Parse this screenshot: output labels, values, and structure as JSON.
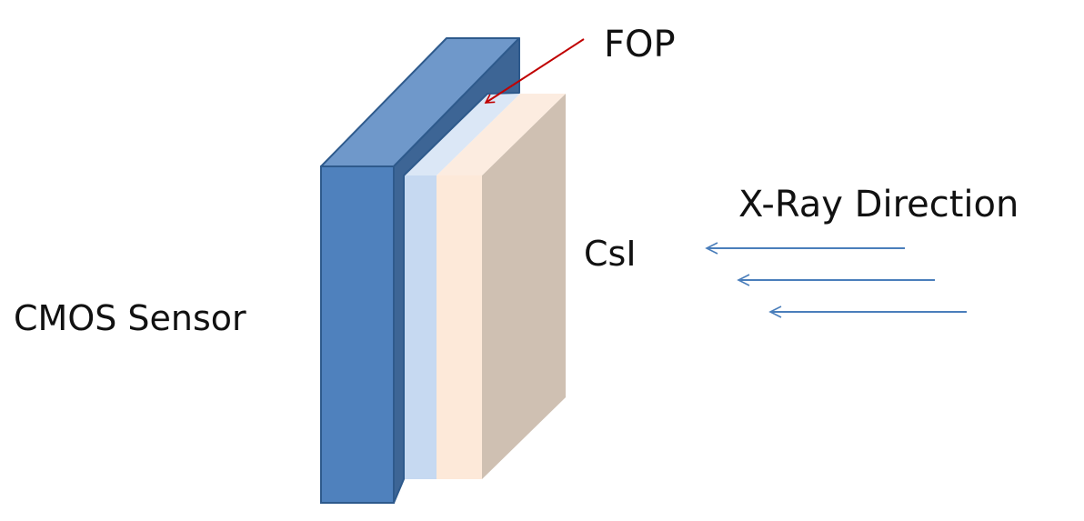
{
  "labels": {
    "fop": "FOP",
    "xray_direction": "X-Ray Direction",
    "csi": "CsI",
    "cmos_sensor": "CMOS Sensor"
  },
  "colors": {
    "cmos_front": "#4f81bd",
    "cmos_top": "#6f98ca",
    "cmos_side": "#3d6595",
    "fop_front": "#c6d9f1",
    "fop_top": "#dbe7f6",
    "csi_front": "#fde9d9",
    "csi_top": "#fcece0",
    "csi_side": "#cfc0b2",
    "pointer_arrow": "#c00000",
    "xray_arrows": "#4a7ebb",
    "outline": "#2e5a8c"
  },
  "icons": {
    "pointer": "arrow-left-down",
    "xray": "arrow-left"
  }
}
